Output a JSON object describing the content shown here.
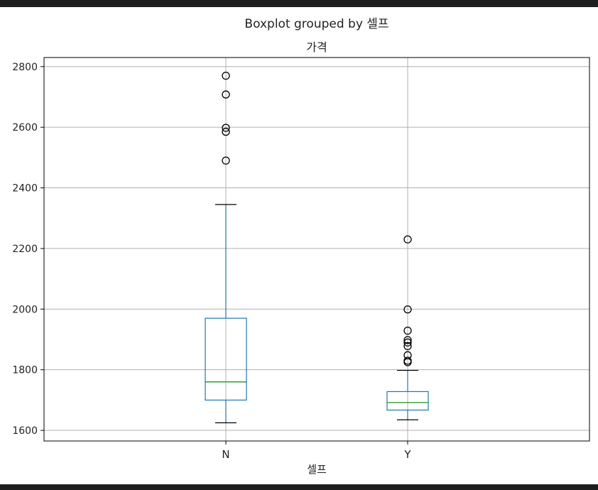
{
  "chart_data": {
    "type": "boxplot",
    "suptitle": "Boxplot grouped by 셀프",
    "title": "가격",
    "xlabel": "셀프",
    "ylabel": "",
    "ylim": [
      1565,
      2830
    ],
    "yticks": [
      1600,
      1800,
      2000,
      2200,
      2400,
      2600,
      2800
    ],
    "categories": [
      "N",
      "Y"
    ],
    "grid": true,
    "colors": {
      "box": "#1f77b4",
      "median": "#2ca02c",
      "cap": "#000000",
      "grid": "#b0b0b0",
      "flier": "#000000"
    },
    "boxes": [
      {
        "name": "N",
        "whisker_low": 1625,
        "q1": 1700,
        "median": 1760,
        "q3": 1970,
        "whisker_high": 2345,
        "outliers": [
          2770,
          2708,
          2598,
          2585,
          2490
        ]
      },
      {
        "name": "Y",
        "whisker_low": 1635,
        "q1": 1667,
        "median": 1692,
        "q3": 1728,
        "whisker_high": 1798,
        "outliers": [
          2230,
          1999,
          1929,
          1898,
          1890,
          1878,
          1848,
          1830,
          1825
        ]
      }
    ]
  }
}
